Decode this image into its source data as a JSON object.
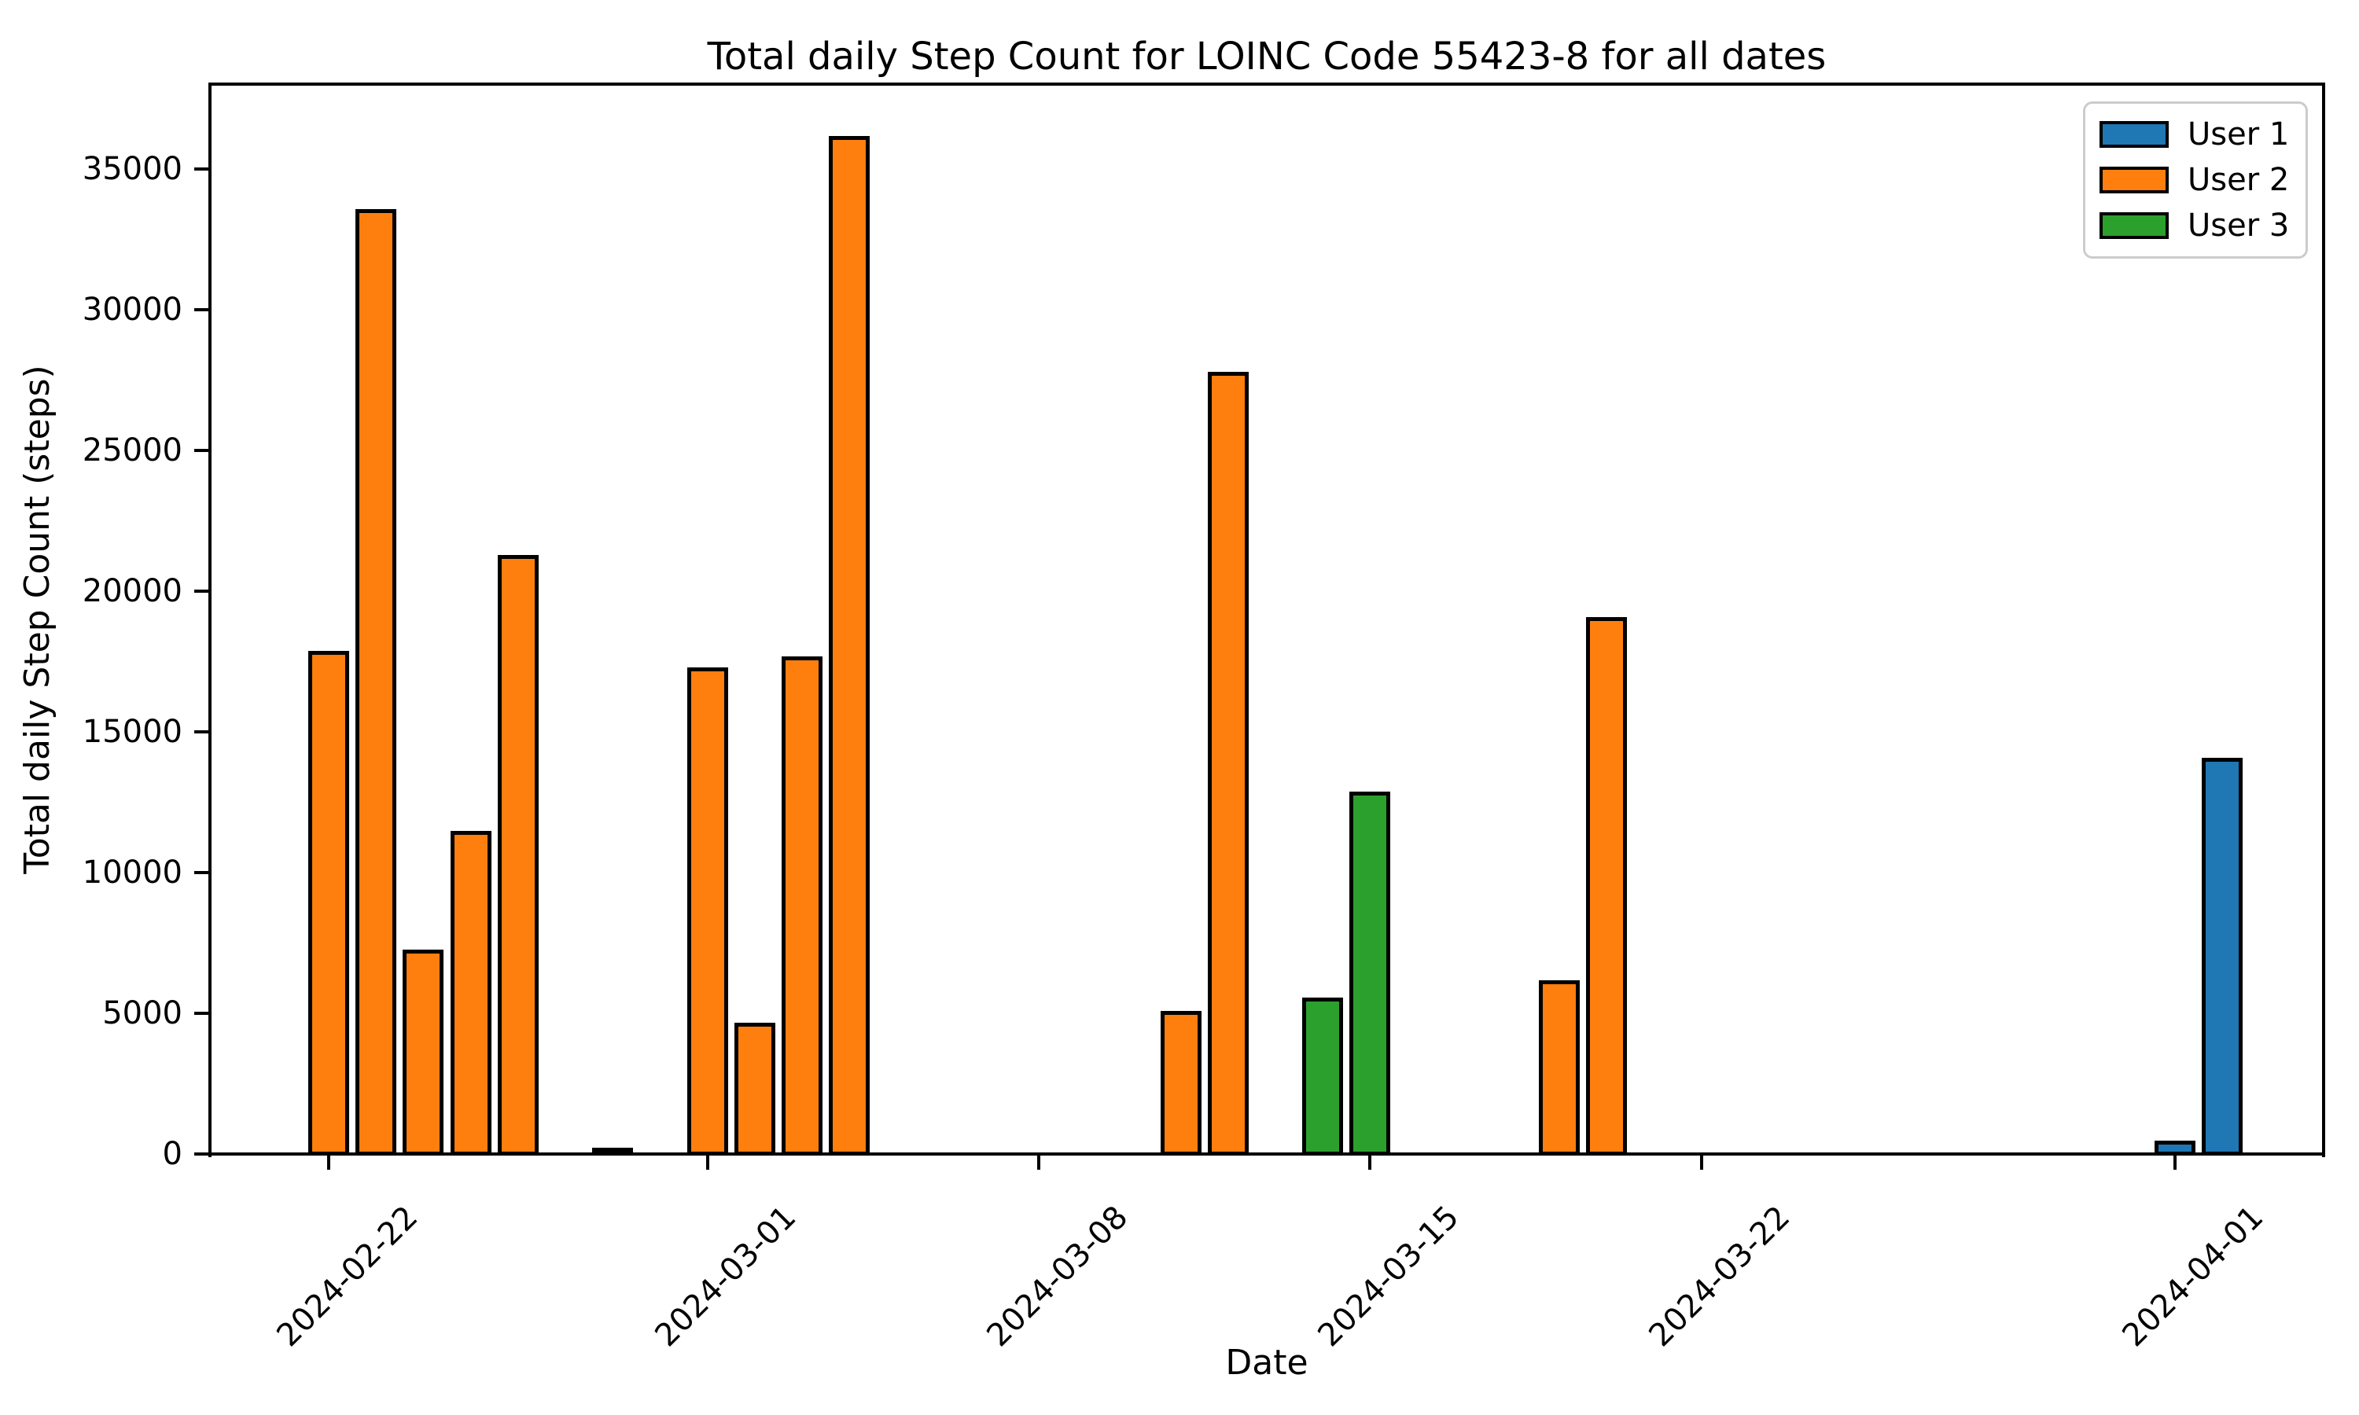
{
  "chart_data": {
    "type": "bar",
    "title": "Total daily Step Count for LOINC Code 55423-8 for all dates",
    "xlabel": "Date",
    "ylabel": "Total daily Step Count (steps)",
    "ylim": [
      0,
      38000
    ],
    "xlim_dates": [
      "2024-02-19",
      "2024-04-04"
    ],
    "grid": false,
    "legend_position": "upper right",
    "yticks": [
      0,
      5000,
      10000,
      15000,
      20000,
      25000,
      30000,
      35000
    ],
    "xticks": [
      "2024-02-22",
      "2024-03-01",
      "2024-03-08",
      "2024-03-15",
      "2024-03-22",
      "2024-04-01"
    ],
    "bar_width_days": 0.8,
    "bar_edge_color": "#000000",
    "legend": [
      {
        "name": "User 1",
        "color": "#1f77b4"
      },
      {
        "name": "User 2",
        "color": "#ff7f0e"
      },
      {
        "name": "User 3",
        "color": "#2ca02c"
      }
    ],
    "series": [
      {
        "name": "User 1",
        "color": "#1f77b4",
        "points": [
          {
            "date": "2024-04-01",
            "value": 400
          },
          {
            "date": "2024-04-02",
            "value": 14000
          }
        ]
      },
      {
        "name": "User 2",
        "color": "#ff7f0e",
        "points": [
          {
            "date": "2024-02-22",
            "value": 17800
          },
          {
            "date": "2024-02-23",
            "value": 33500
          },
          {
            "date": "2024-02-24",
            "value": 7200
          },
          {
            "date": "2024-02-25",
            "value": 11400
          },
          {
            "date": "2024-02-26",
            "value": 21200
          },
          {
            "date": "2024-02-28",
            "value": 150
          },
          {
            "date": "2024-03-01",
            "value": 17200
          },
          {
            "date": "2024-03-02",
            "value": 4600
          },
          {
            "date": "2024-03-03",
            "value": 17600
          },
          {
            "date": "2024-03-04",
            "value": 36100
          },
          {
            "date": "2024-03-11",
            "value": 5000
          },
          {
            "date": "2024-03-12",
            "value": 27700
          },
          {
            "date": "2024-03-19",
            "value": 6100
          },
          {
            "date": "2024-03-20",
            "value": 19000
          }
        ]
      },
      {
        "name": "User 3",
        "color": "#2ca02c",
        "points": [
          {
            "date": "2024-03-14",
            "value": 5500
          },
          {
            "date": "2024-03-15",
            "value": 12800
          }
        ]
      }
    ]
  }
}
